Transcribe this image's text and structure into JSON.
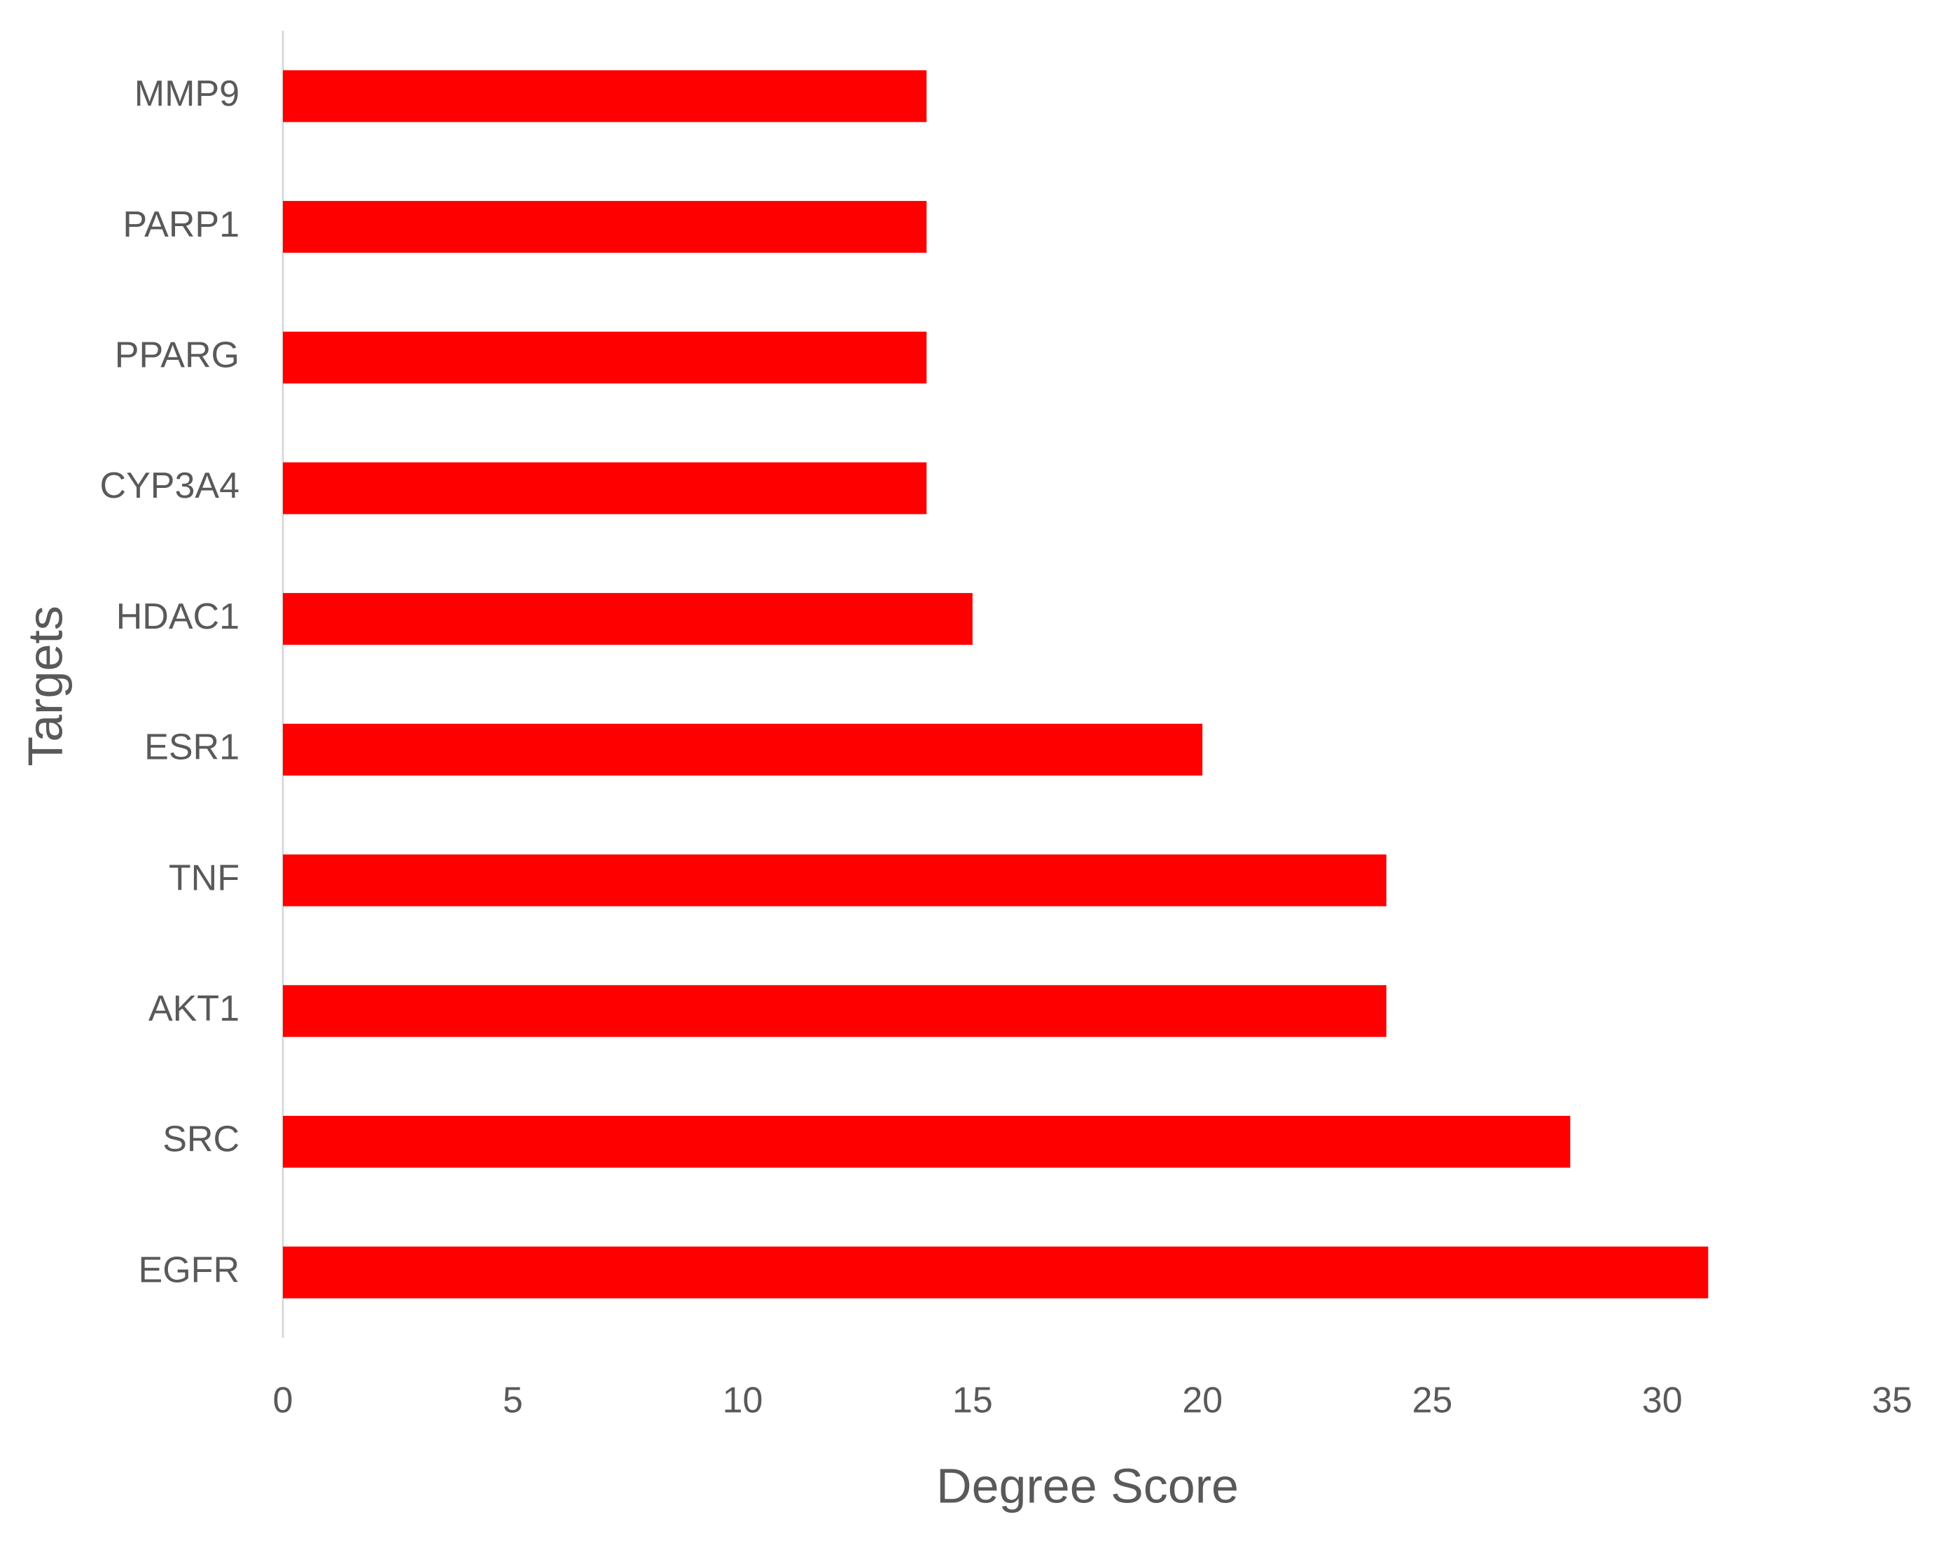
{
  "chart_data": {
    "type": "hbar",
    "x_label": "Degree Score",
    "y_label": "Targets",
    "categories": [
      "EGFR",
      "SRC",
      "AKT1",
      "TNF",
      "ESR1",
      "HDAC1",
      "CYP3A4",
      "PPARG",
      "PARP1",
      "MMP9"
    ],
    "values": [
      31,
      28,
      24,
      24,
      20,
      15,
      14,
      14,
      14,
      14
    ],
    "color": "#ff0000",
    "xlim": [
      0,
      35
    ],
    "xticks": [
      0,
      5,
      10,
      15,
      20,
      25,
      30,
      35
    ],
    "grid": false
  }
}
